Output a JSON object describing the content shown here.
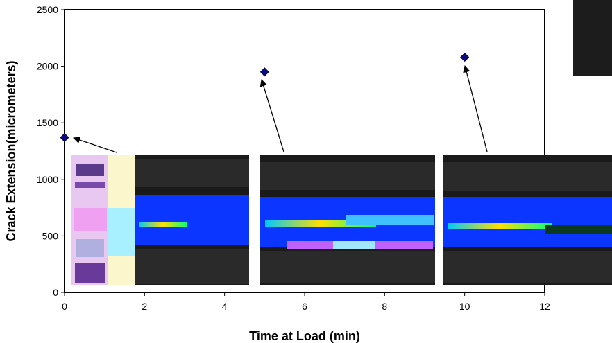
{
  "chart_data": {
    "type": "scatter",
    "title": "",
    "xlabel": "Time at Load (min)",
    "ylabel": "Crack Extension(micrometers)",
    "xlim": [
      0,
      12
    ],
    "ylim": [
      0,
      2500
    ],
    "x_ticks": [
      0,
      2,
      4,
      6,
      8,
      10,
      12
    ],
    "y_ticks": [
      0,
      500,
      1000,
      1500,
      2000,
      2500
    ],
    "grid": false,
    "legend": "none",
    "series": [
      {
        "points": [
          {
            "x": 0,
            "y": 1370
          },
          {
            "x": 5,
            "y": 1950
          },
          {
            "x": 10,
            "y": 2080
          }
        ]
      }
    ],
    "marker": "diamond",
    "marker_color": "#0a0a80",
    "annotations": "arrows from crack-image insets to each data point",
    "insets": [
      {
        "name": "crack-image-inset-1"
      },
      {
        "name": "crack-image-inset-2"
      },
      {
        "name": "crack-image-inset-3"
      }
    ]
  }
}
